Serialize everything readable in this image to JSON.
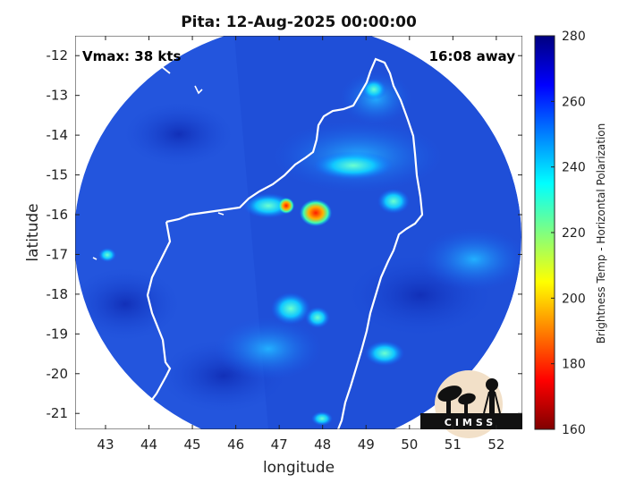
{
  "title": "Pita: 12-Aug-2025 00:00:00",
  "vmax_text": "Vmax: 38 kts",
  "away_text": "16:08 away",
  "xlabel": "longitude",
  "ylabel": "latitude",
  "x_ticks": [
    "43",
    "44",
    "45",
    "46",
    "47",
    "48",
    "49",
    "50",
    "51",
    "52"
  ],
  "y_ticks": [
    "-12",
    "-13",
    "-14",
    "-15",
    "-16",
    "-17",
    "-18",
    "-19",
    "-20",
    "-21"
  ],
  "map_extent": {
    "lon": [
      42.3,
      52.6
    ],
    "lat": [
      -21.4,
      -11.5
    ]
  },
  "colorbar": {
    "label": "Brightness Temp - Horizontal Polarization",
    "range": [
      160,
      280
    ],
    "ticks": [
      "280",
      "260",
      "240",
      "220",
      "200",
      "180",
      "160"
    ],
    "colors": [
      "#00007f",
      "#0000ff",
      "#0080ff",
      "#00ffff",
      "#80ff80",
      "#ffff00",
      "#ff8000",
      "#ff0000",
      "#800000"
    ]
  },
  "logo": {
    "text": "CIMSS"
  },
  "colors": {
    "background_field": "#1f4fd8",
    "coastline": "#ffffff"
  }
}
